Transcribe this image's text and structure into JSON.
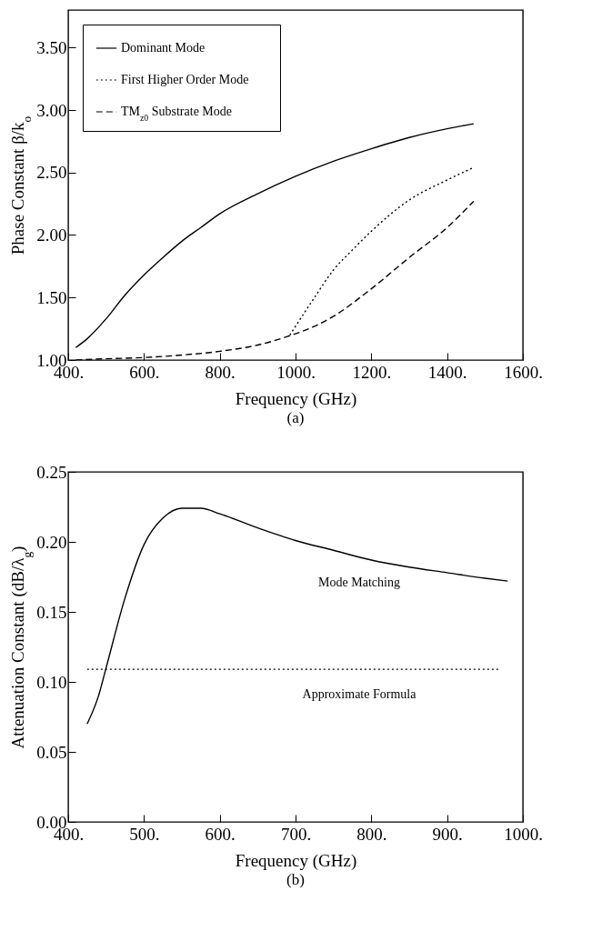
{
  "chart_data": [
    {
      "type": "line",
      "xlabel": "Frequency (GHz)",
      "ylabel": "Phase Constant β/k$_{o}$",
      "annotations": [
        "(a)"
      ],
      "xlim": [
        400,
        1600
      ],
      "ylim": [
        1,
        3.8
      ],
      "xticks": [
        {
          "value": 400,
          "label": "400."
        },
        {
          "value": 600,
          "label": "600."
        },
        {
          "value": 800,
          "label": "800."
        },
        {
          "value": 1000,
          "label": "1000."
        },
        {
          "value": 1200,
          "label": "1200."
        },
        {
          "value": 1400,
          "label": "1400."
        },
        {
          "value": 1600,
          "label": "1600."
        }
      ],
      "yticks": [
        {
          "value": 1,
          "label": "1.00"
        },
        {
          "value": 1.5,
          "label": "1.50"
        },
        {
          "value": 2,
          "label": "2.00"
        },
        {
          "value": 2.5,
          "label": "2.50"
        },
        {
          "value": 3,
          "label": "3.00"
        },
        {
          "value": 3.5,
          "label": "3.50"
        }
      ],
      "grid": false,
      "legend": "top left",
      "marker": "none",
      "series": [
        {
          "name": "Dominant Mode",
          "color": "#000000",
          "line_style": "solid",
          "x": [
            420,
            450,
            500,
            550,
            600,
            650,
            700,
            750,
            800,
            900,
            1000,
            1100,
            1200,
            1300,
            1400,
            1470
          ],
          "values": [
            1.1,
            1.17,
            1.33,
            1.52,
            1.68,
            1.82,
            1.95,
            2.06,
            2.17,
            2.33,
            2.47,
            2.59,
            2.69,
            2.78,
            2.85,
            2.89
          ]
        },
        {
          "name": "First Higher Order Mode",
          "color": "#000000",
          "line_style": "dotted",
          "x": [
            985,
            1000,
            1050,
            1100,
            1150,
            1200,
            1300,
            1400,
            1470
          ],
          "values": [
            1.2,
            1.27,
            1.5,
            1.72,
            1.88,
            2.03,
            2.28,
            2.44,
            2.54
          ]
        },
        {
          "name": "TM$_{z0}$ Substrate Mode",
          "color": "#000000",
          "line_style": "dashed",
          "x": [
            420,
            500,
            600,
            700,
            800,
            900,
            980,
            1050,
            1100,
            1200,
            1300,
            1400,
            1470
          ],
          "values": [
            1.0,
            1.01,
            1.02,
            1.04,
            1.07,
            1.12,
            1.19,
            1.27,
            1.35,
            1.57,
            1.82,
            2.06,
            2.27
          ]
        }
      ]
    },
    {
      "type": "line",
      "xlabel": "Frequency (GHz)",
      "ylabel": "Attenuation Constant (dB/λ$_{g}$)",
      "annotations": [
        "(b)"
      ],
      "xlim": [
        400,
        1000
      ],
      "ylim": [
        0,
        0.25
      ],
      "xticks": [
        {
          "value": 400,
          "label": "400."
        },
        {
          "value": 500,
          "label": "500."
        },
        {
          "value": 600,
          "label": "600."
        },
        {
          "value": 700,
          "label": "700."
        },
        {
          "value": 800,
          "label": "800."
        },
        {
          "value": 900,
          "label": "900."
        },
        {
          "value": 1000,
          "label": "1000."
        }
      ],
      "yticks": [
        {
          "value": 0,
          "label": "0.00"
        },
        {
          "value": 0.05,
          "label": "0.05"
        },
        {
          "value": 0.1,
          "label": "0.10"
        },
        {
          "value": 0.15,
          "label": "0.15"
        },
        {
          "value": 0.2,
          "label": "0.20"
        },
        {
          "value": 0.25,
          "label": "0.25"
        }
      ],
      "grid": false,
      "legend": false,
      "marker": "none",
      "series": [
        {
          "name": "Mode Matching",
          "color": "#000000",
          "line_style": "solid",
          "x": [
            425,
            440,
            450,
            475,
            500,
            525,
            550,
            575,
            600,
            650,
            700,
            750,
            800,
            850,
            900,
            950,
            980
          ],
          "values": [
            0.07,
            0.09,
            0.11,
            0.16,
            0.198,
            0.217,
            0.224,
            0.224,
            0.22,
            0.21,
            0.201,
            0.194,
            0.187,
            0.182,
            0.178,
            0.174,
            0.172
          ]
        },
        {
          "name": "Approximate Formula",
          "color": "#000000",
          "line_style": "dotted",
          "x": [
            425,
            970
          ],
          "values": [
            0.109,
            0.109
          ]
        }
      ]
    }
  ]
}
